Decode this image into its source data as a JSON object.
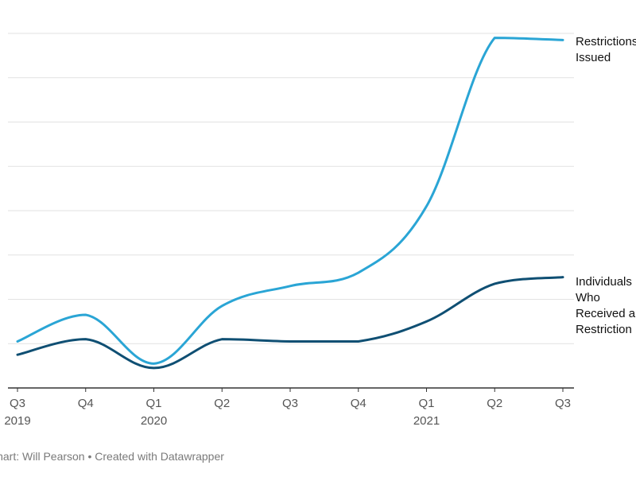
{
  "chart_data": {
    "type": "line",
    "title": "",
    "xlabel": "",
    "ylabel": "",
    "ylim": [
      0,
      8
    ],
    "grid": true,
    "gridlines": [
      1,
      2,
      3,
      4,
      5,
      6,
      7,
      8
    ],
    "categories": [
      {
        "top": "Q3",
        "bottom": "2019"
      },
      {
        "top": "Q4",
        "bottom": ""
      },
      {
        "top": "Q1",
        "bottom": "2020"
      },
      {
        "top": "Q2",
        "bottom": ""
      },
      {
        "top": "Q3",
        "bottom": ""
      },
      {
        "top": "Q4",
        "bottom": ""
      },
      {
        "top": "Q1",
        "bottom": "2021"
      },
      {
        "top": "Q2",
        "bottom": ""
      },
      {
        "top": "Q3",
        "bottom": ""
      }
    ],
    "series": [
      {
        "name": "Restrictions Issued",
        "label_lines": [
          "Restrictions",
          "Issued"
        ],
        "color": "#2aa5d5",
        "values": [
          1.05,
          1.65,
          0.55,
          1.85,
          2.3,
          2.6,
          4.1,
          7.9,
          7.85
        ]
      },
      {
        "name": "Individuals Who Received a Restriction",
        "label_lines": [
          "Individuals",
          "Who",
          "Received a",
          "Restriction"
        ],
        "color": "#0f4f73",
        "values": [
          0.75,
          1.1,
          0.45,
          1.1,
          1.05,
          1.05,
          1.5,
          2.35,
          2.5
        ]
      }
    ]
  },
  "footer": {
    "text": "Chart: Will Pearson • Created with Datawrapper"
  }
}
